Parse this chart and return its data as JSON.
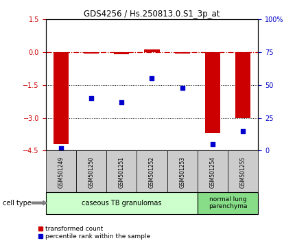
{
  "title": "GDS4256 / Hs.250813.0.S1_3p_at",
  "samples": [
    "GSM501249",
    "GSM501250",
    "GSM501251",
    "GSM501252",
    "GSM501253",
    "GSM501254",
    "GSM501255"
  ],
  "transformed_count": [
    -4.2,
    -0.05,
    -0.1,
    0.12,
    -0.05,
    -3.7,
    -3.0
  ],
  "percentile_rank": [
    2,
    40,
    37,
    55,
    48,
    5,
    15
  ],
  "ylim_left": [
    -4.5,
    1.5
  ],
  "yticks_left": [
    1.5,
    0,
    -1.5,
    -3,
    -4.5
  ],
  "ylim_right": [
    0,
    100
  ],
  "yticks_right": [
    0,
    25,
    50,
    75,
    100
  ],
  "bar_color": "#cc0000",
  "scatter_color": "#0000cc",
  "hline_color": "#cc0000",
  "hline_y": 0,
  "dotted_lines": [
    -1.5,
    -3
  ],
  "group1_label": "caseous TB granulomas",
  "group2_label": "normal lung\nparenchyma",
  "cell_type_label": "cell type",
  "legend_red_label": "transformed count",
  "legend_blue_label": "percentile rank within the sample",
  "group1_color": "#ccffcc",
  "group2_color": "#88dd88",
  "bar_width": 0.5,
  "figsize": [
    4.3,
    3.54
  ],
  "dpi": 100,
  "box_color": "#cccccc"
}
